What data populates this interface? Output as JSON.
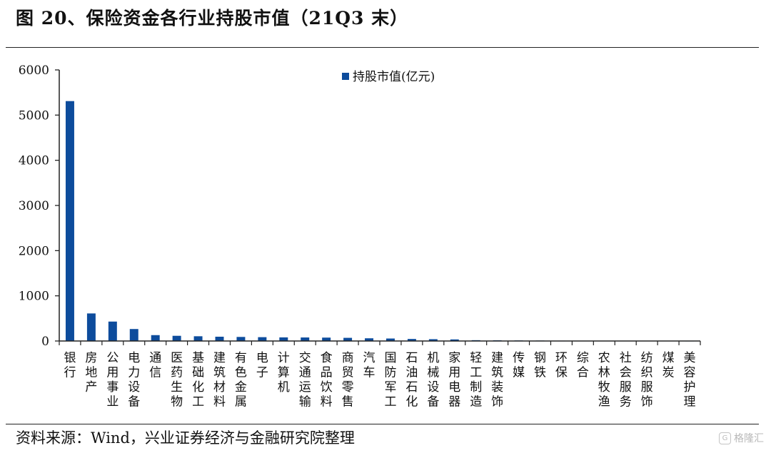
{
  "header": {
    "title": "图 20、保险资金各行业持股市值（21Q3 末）"
  },
  "footer": {
    "source": "资料来源：Wind，兴业证券经济与金融研究院整理",
    "watermark": "格隆汇"
  },
  "chart_data": {
    "type": "bar",
    "categories": [
      "银行",
      "房地产",
      "公用事业",
      "电力设备",
      "通信",
      "医药生物",
      "基础化工",
      "建筑材料",
      "有色金属",
      "电子",
      "计算机",
      "交通运输",
      "食品饮料",
      "商贸零售",
      "汽车",
      "国防军工",
      "石油石化",
      "机械设备",
      "家用电器",
      "轻工制造",
      "建筑装饰",
      "传媒",
      "钢铁",
      "环保",
      "综合",
      "农林牧渔",
      "社会服务",
      "纺织服饰",
      "煤炭",
      "美容护理"
    ],
    "series": [
      {
        "name": "持股市值(亿元)",
        "values": [
          5310,
          610,
          430,
          265,
          130,
          115,
          105,
          95,
          90,
          85,
          80,
          78,
          75,
          70,
          60,
          55,
          45,
          40,
          35,
          18,
          15,
          12,
          10,
          8,
          6,
          5,
          4,
          3,
          2,
          1
        ]
      }
    ],
    "yticks": [
      "0",
      "1000",
      "2000",
      "3000",
      "4000",
      "5000",
      "6000"
    ],
    "ylim": [
      0,
      6000
    ],
    "xlabel": "",
    "ylabel": "",
    "grid": false,
    "legend_position": "top-center",
    "colors": {
      "bar": "#0d4c9c",
      "axis": "#222222"
    }
  }
}
